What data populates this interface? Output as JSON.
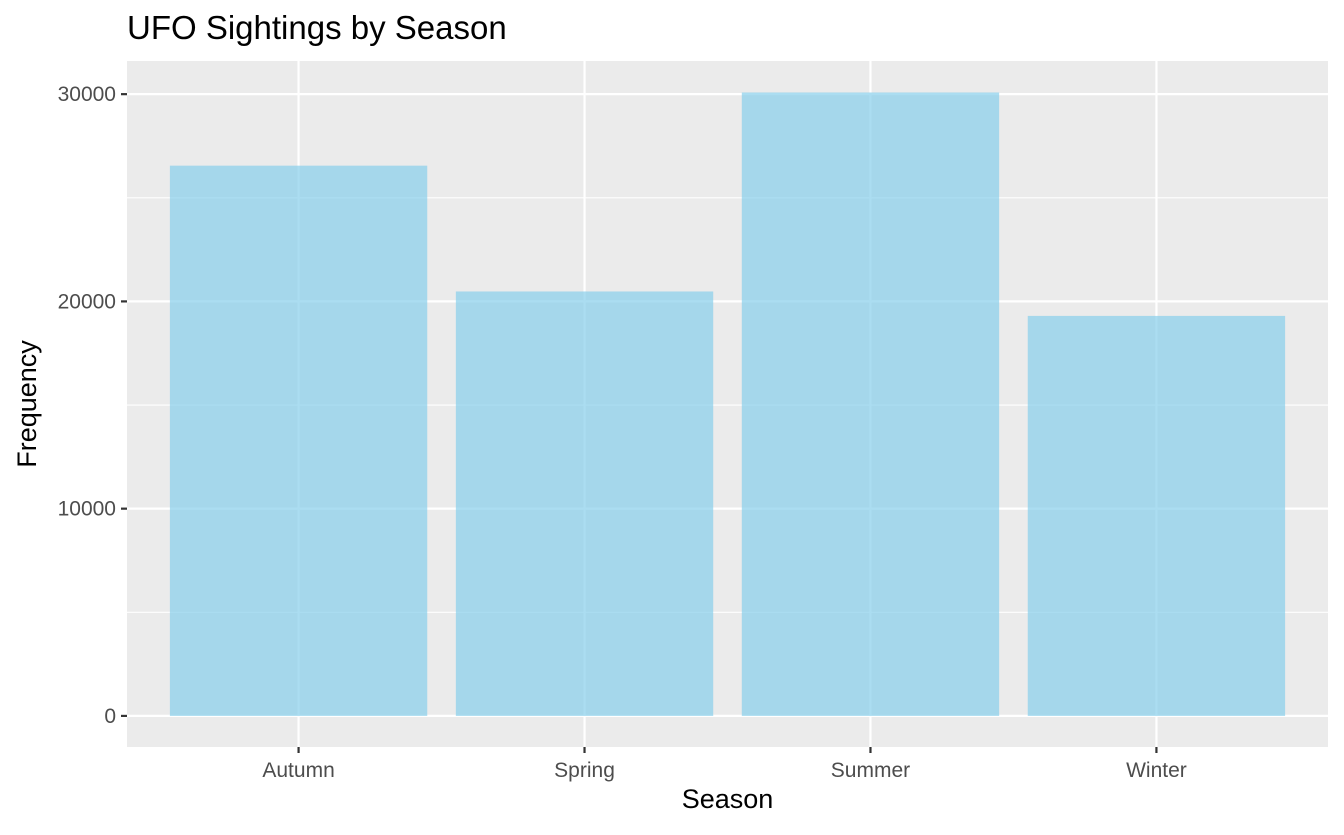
{
  "chart_data": {
    "type": "bar",
    "title": "UFO Sightings by Season",
    "xlabel": "Season",
    "ylabel": "Frequency",
    "categories": [
      "Autumn",
      "Spring",
      "Summer",
      "Winter"
    ],
    "values": [
      26550,
      20480,
      30080,
      19300
    ],
    "ylim": [
      -1500,
      31600
    ],
    "yticks": [
      0,
      10000,
      20000,
      30000
    ],
    "ytick_labels": [
      "0",
      "10000",
      "20000",
      "30000"
    ],
    "grid": true,
    "legend": "none",
    "colors": {
      "bar": "#87CEEB",
      "bar_opacity": 0.7,
      "panel": "#EBEBEB",
      "grid": "#FFFFFF",
      "text": "#000000",
      "tick_text": "#4D4D4D",
      "tick": "#333333"
    }
  }
}
